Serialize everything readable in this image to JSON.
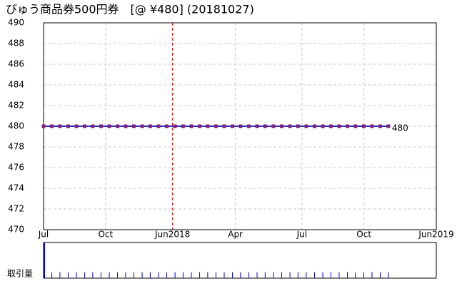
{
  "chart_data": [
    {
      "type": "line",
      "title": "びゅう商品券500円券　[@ ¥480] (20181027)",
      "x": [
        0.0,
        0.4,
        0.79,
        1.19,
        1.59,
        1.99,
        2.38,
        2.78,
        3.18,
        3.58,
        3.97,
        4.37,
        4.77,
        5.16,
        5.56,
        5.96,
        6.36,
        6.75,
        7.15,
        7.55,
        7.94,
        8.34,
        8.74,
        9.14,
        9.53,
        9.93,
        10.33,
        10.72,
        11.12,
        11.52,
        11.92,
        12.31,
        12.71,
        13.11,
        13.51,
        13.9,
        14.3,
        14.7,
        15.09,
        15.49,
        15.89,
        16.29,
        16.68
      ],
      "series": [
        {
          "color": "#2a2ac0",
          "marker_color": "#7a1f7a",
          "label_color": "#e00000",
          "values": [
            480,
            480,
            480,
            480,
            480,
            480,
            480,
            480,
            480,
            480,
            480,
            480,
            480,
            480,
            480,
            480,
            480,
            480,
            480,
            480,
            480,
            480,
            480,
            480,
            480,
            480,
            480,
            480,
            480,
            480,
            480,
            480,
            480,
            480,
            480,
            480,
            480,
            480,
            480,
            480,
            480,
            480,
            480
          ]
        }
      ],
      "xlim": [
        0,
        19
      ],
      "xticks": [
        {
          "value": 0,
          "label": "Jul"
        },
        {
          "value": 3,
          "label": "Oct"
        },
        {
          "value": 6.24,
          "label": "Jun2018"
        },
        {
          "value": 9.28,
          "label": "Apr"
        },
        {
          "value": 12.5,
          "label": "Jul"
        },
        {
          "value": 15.5,
          "label": "Oct"
        },
        {
          "value": 19,
          "label": "Jun2019"
        }
      ],
      "ylim": [
        470,
        490
      ],
      "yticks": [
        470,
        472,
        474,
        476,
        478,
        480,
        482,
        484,
        486,
        488,
        490
      ],
      "grid": true,
      "marker_line": {
        "x": 6.24,
        "color": "#e00000"
      }
    },
    {
      "type": "bar",
      "ylabel": "取引量",
      "color": "#0000cc",
      "x": [
        0.0,
        0.4,
        0.79,
        1.19,
        1.59,
        1.99,
        2.38,
        2.78,
        3.18,
        3.58,
        3.97,
        4.37,
        4.77,
        5.16,
        5.56,
        5.96,
        6.36,
        6.75,
        7.15,
        7.55,
        7.94,
        8.34,
        8.74,
        9.14,
        9.53,
        9.93,
        10.33,
        10.72,
        11.12,
        11.52,
        11.92,
        12.31,
        12.71,
        13.11,
        13.51,
        13.9,
        14.3,
        14.7,
        15.09,
        15.49,
        15.89,
        16.29,
        16.68
      ],
      "values": [
        6,
        1,
        1,
        1,
        1,
        1,
        1,
        1,
        1,
        1,
        1,
        1,
        1,
        1,
        1,
        1,
        1,
        1,
        1,
        1,
        1,
        1,
        1,
        1,
        1,
        1,
        1,
        1,
        1,
        1,
        1,
        1,
        1,
        1,
        1,
        1,
        1,
        1,
        1,
        1,
        1,
        1,
        1
      ],
      "xlim": [
        0,
        19
      ],
      "ylim": [
        0,
        6
      ]
    }
  ]
}
